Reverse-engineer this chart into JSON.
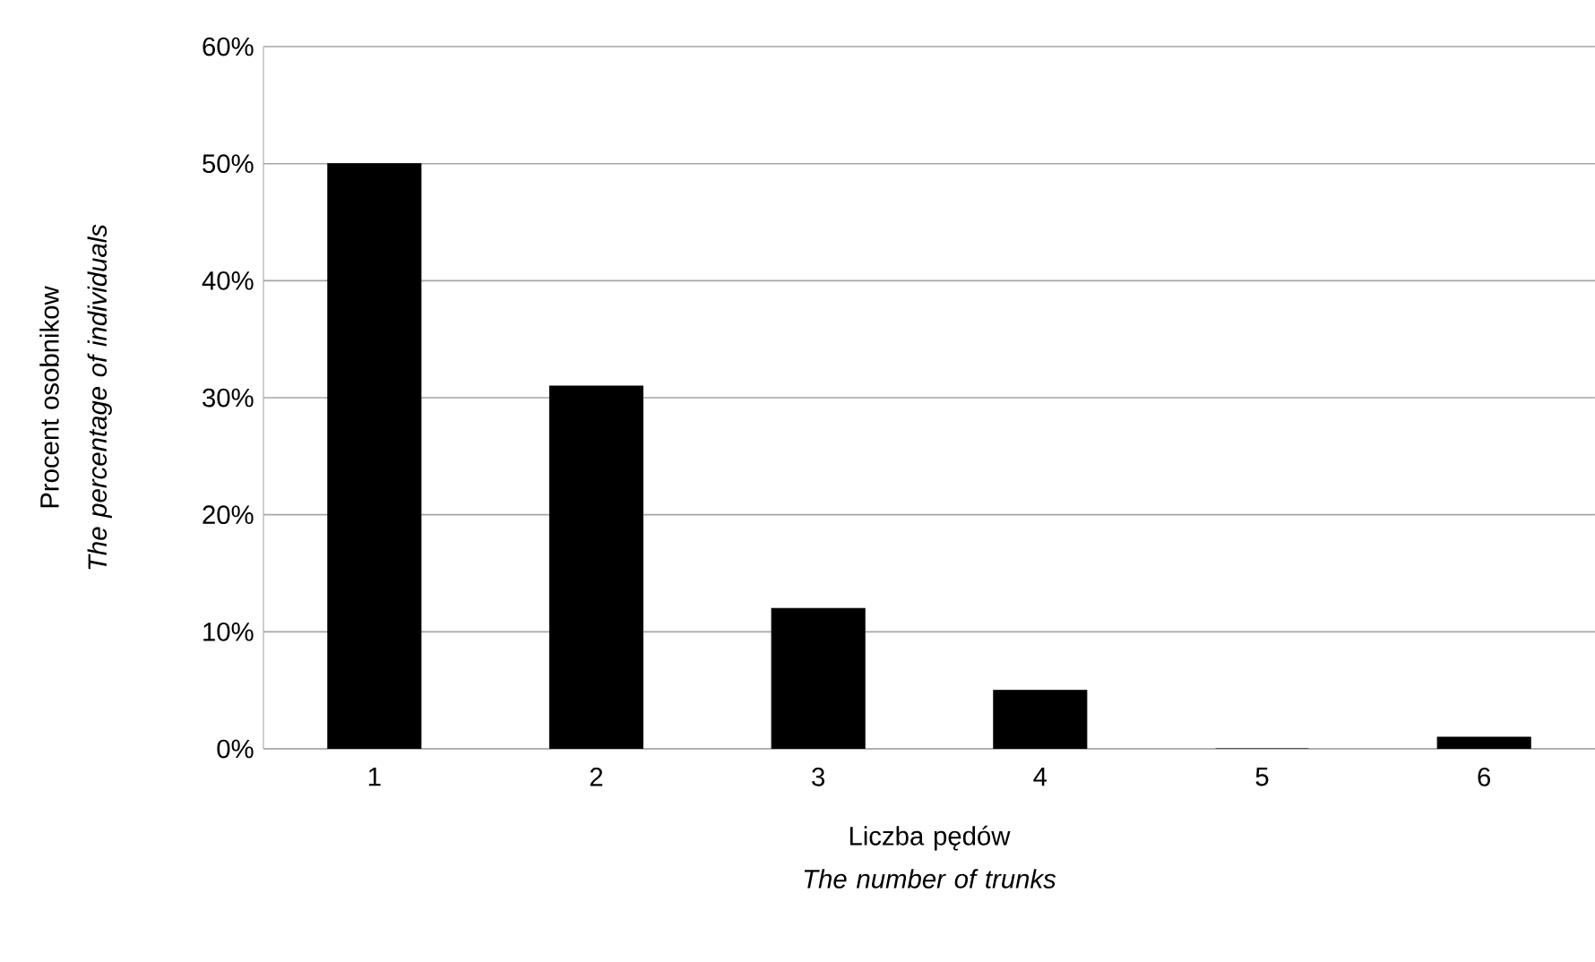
{
  "chart_data": {
    "type": "bar",
    "xlabel": "Liczba pędów *The number of trunks*",
    "ylabel": "Procent osobnikow *The percentage of individuals*",
    "categories": [
      "1",
      "2",
      "3",
      "4",
      "5",
      "6"
    ],
    "values": [
      50,
      31,
      12,
      5,
      0,
      1
    ],
    "color": "#000000",
    "ylim": [
      0,
      60
    ],
    "yticks": [
      {
        "value": 0,
        "label": "0%"
      },
      {
        "value": 10,
        "label": "10%"
      },
      {
        "value": 20,
        "label": "20%"
      },
      {
        "value": 30,
        "label": "30%"
      },
      {
        "value": 40,
        "label": "40%"
      },
      {
        "value": 50,
        "label": "50%"
      },
      {
        "value": 60,
        "label": "60%"
      }
    ],
    "grid": "y"
  }
}
